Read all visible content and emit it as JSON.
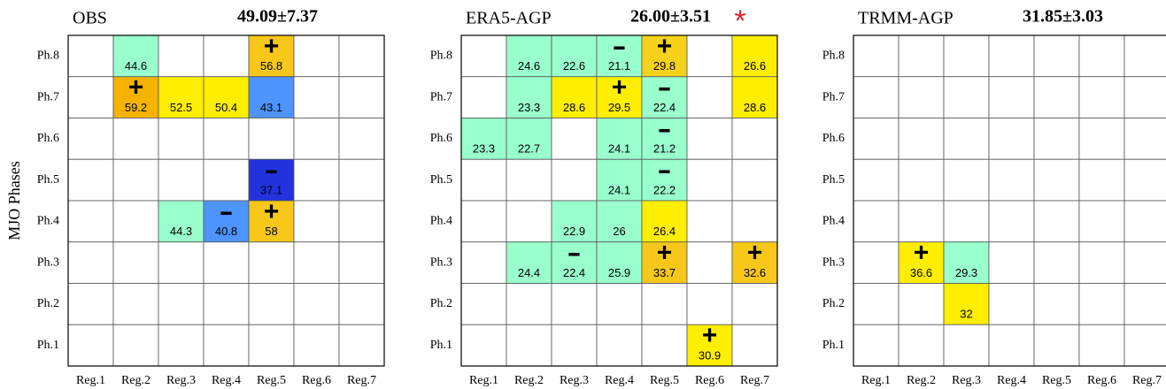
{
  "chart_data": [
    {
      "type": "grid",
      "title": "OBS",
      "stat": "49.09±7.37",
      "y_label": "MJO Phases",
      "rows": [
        "Ph.8",
        "Ph.7",
        "Ph.6",
        "Ph.5",
        "Ph.4",
        "Ph.3",
        "Ph.2",
        "Ph.1"
      ],
      "columns": [
        "Reg.1",
        "Reg.2",
        "Reg.3",
        "Reg.4",
        "Reg.5",
        "Reg.6",
        "Reg.7"
      ],
      "values": [
        [
          null,
          44.6,
          null,
          null,
          56.8,
          null,
          null
        ],
        [
          null,
          59.2,
          52.5,
          50.4,
          43.1,
          null,
          null
        ],
        [
          null,
          null,
          null,
          null,
          null,
          null,
          null
        ],
        [
          null,
          null,
          null,
          null,
          37.1,
          null,
          null
        ],
        [
          null,
          null,
          44.3,
          40.8,
          58,
          null,
          null
        ],
        [
          null,
          null,
          null,
          null,
          null,
          null,
          null
        ],
        [
          null,
          null,
          null,
          null,
          null,
          null,
          null
        ],
        [
          null,
          null,
          null,
          null,
          null,
          null,
          null
        ]
      ],
      "colors": [
        [
          null,
          "#99ffcc",
          null,
          null,
          "#f7c81a",
          null,
          null
        ],
        [
          null,
          "#f5b300",
          "#ffee00",
          "#ffee00",
          "#4d94ff",
          null,
          null
        ],
        [
          null,
          null,
          null,
          null,
          null,
          null,
          null
        ],
        [
          null,
          null,
          null,
          null,
          "#2233dd",
          null,
          null
        ],
        [
          null,
          null,
          "#99ffcc",
          "#4d94ff",
          "#f7c81a",
          null,
          null
        ],
        [
          null,
          null,
          null,
          null,
          null,
          null,
          null
        ],
        [
          null,
          null,
          null,
          null,
          null,
          null,
          null
        ],
        [
          null,
          null,
          null,
          null,
          null,
          null,
          null
        ]
      ],
      "signs": [
        [
          null,
          null,
          null,
          null,
          "+",
          null,
          null
        ],
        [
          null,
          "+",
          null,
          null,
          null,
          null,
          null
        ],
        [
          null,
          null,
          null,
          null,
          null,
          null,
          null
        ],
        [
          null,
          null,
          null,
          null,
          "-",
          null,
          null
        ],
        [
          null,
          null,
          null,
          "-",
          "+",
          null,
          null
        ],
        [
          null,
          null,
          null,
          null,
          null,
          null,
          null
        ],
        [
          null,
          null,
          null,
          null,
          null,
          null,
          null
        ],
        [
          null,
          null,
          null,
          null,
          null,
          null,
          null
        ]
      ]
    },
    {
      "type": "grid",
      "title": "ERA5-AGP",
      "stat": "26.00±3.51",
      "marker": "*",
      "rows": [
        "Ph.8",
        "Ph.7",
        "Ph.6",
        "Ph.5",
        "Ph.4",
        "Ph.3",
        "Ph.2",
        "Ph.1"
      ],
      "columns": [
        "Reg.1",
        "Reg.2",
        "Reg.3",
        "Reg.4",
        "Reg.5",
        "Reg.6",
        "Reg.7"
      ],
      "values": [
        [
          null,
          24.6,
          22.6,
          21.1,
          29.8,
          null,
          26.6
        ],
        [
          null,
          23.3,
          28.6,
          29.5,
          22.4,
          null,
          28.6
        ],
        [
          23.3,
          22.7,
          null,
          24.1,
          21.2,
          null,
          null
        ],
        [
          null,
          null,
          null,
          24.1,
          22.2,
          null,
          null
        ],
        [
          null,
          null,
          22.9,
          26,
          26.4,
          null,
          null
        ],
        [
          null,
          24.4,
          22.4,
          25.9,
          33.7,
          null,
          32.6
        ],
        [
          null,
          null,
          null,
          null,
          null,
          null,
          null
        ],
        [
          null,
          null,
          null,
          null,
          null,
          30.9,
          null
        ]
      ],
      "colors": [
        [
          null,
          "#99ffcc",
          "#99ffcc",
          "#99ffcc",
          "#f7d21a",
          null,
          "#ffee00"
        ],
        [
          null,
          "#99ffcc",
          "#ffee00",
          "#ffee00",
          "#99ffcc",
          null,
          "#ffee00"
        ],
        [
          "#99ffcc",
          "#99ffcc",
          null,
          "#99ffcc",
          "#99ffcc",
          null,
          null
        ],
        [
          null,
          null,
          null,
          "#99ffcc",
          "#99ffcc",
          null,
          null
        ],
        [
          null,
          null,
          "#99ffcc",
          "#99ffcc",
          "#ffee00",
          null,
          null
        ],
        [
          null,
          "#99ffcc",
          "#99ffcc",
          "#99ffcc",
          "#f7c81a",
          null,
          "#f7c81a"
        ],
        [
          null,
          null,
          null,
          null,
          null,
          null,
          null
        ],
        [
          null,
          null,
          null,
          null,
          null,
          "#ffee00",
          null
        ]
      ],
      "signs": [
        [
          null,
          null,
          null,
          "-",
          "+",
          null,
          null
        ],
        [
          null,
          null,
          null,
          "+",
          "-",
          null,
          null
        ],
        [
          null,
          null,
          null,
          null,
          "-",
          null,
          null
        ],
        [
          null,
          null,
          null,
          null,
          "-",
          null,
          null
        ],
        [
          null,
          null,
          null,
          null,
          null,
          null,
          null
        ],
        [
          null,
          null,
          "-",
          null,
          "+",
          null,
          "+"
        ],
        [
          null,
          null,
          null,
          null,
          null,
          null,
          null
        ],
        [
          null,
          null,
          null,
          null,
          null,
          "+",
          null
        ]
      ]
    },
    {
      "type": "grid",
      "title": "TRMM-AGP",
      "stat": "31.85±3.03",
      "rows": [
        "Ph.8",
        "Ph.7",
        "Ph.6",
        "Ph.5",
        "Ph.4",
        "Ph.3",
        "Ph.2",
        "Ph.1"
      ],
      "columns": [
        "Reg.1",
        "Reg.2",
        "Reg.3",
        "Reg.4",
        "Reg.5",
        "Reg.6",
        "Reg.7"
      ],
      "values": [
        [
          null,
          null,
          null,
          null,
          null,
          null,
          null
        ],
        [
          null,
          null,
          null,
          null,
          null,
          null,
          null
        ],
        [
          null,
          null,
          null,
          null,
          null,
          null,
          null
        ],
        [
          null,
          null,
          null,
          null,
          null,
          null,
          null
        ],
        [
          null,
          null,
          null,
          null,
          null,
          null,
          null
        ],
        [
          null,
          36.6,
          29.3,
          null,
          null,
          null,
          null
        ],
        [
          null,
          null,
          32,
          null,
          null,
          null,
          null
        ],
        [
          null,
          null,
          null,
          null,
          null,
          null,
          null
        ]
      ],
      "colors": [
        [
          null,
          null,
          null,
          null,
          null,
          null,
          null
        ],
        [
          null,
          null,
          null,
          null,
          null,
          null,
          null
        ],
        [
          null,
          null,
          null,
          null,
          null,
          null,
          null
        ],
        [
          null,
          null,
          null,
          null,
          null,
          null,
          null
        ],
        [
          null,
          null,
          null,
          null,
          null,
          null,
          null
        ],
        [
          null,
          "#ffee00",
          "#99ffcc",
          null,
          null,
          null,
          null
        ],
        [
          null,
          null,
          "#ffee00",
          null,
          null,
          null,
          null
        ],
        [
          null,
          null,
          null,
          null,
          null,
          null,
          null
        ]
      ],
      "signs": [
        [
          null,
          null,
          null,
          null,
          null,
          null,
          null
        ],
        [
          null,
          null,
          null,
          null,
          null,
          null,
          null
        ],
        [
          null,
          null,
          null,
          null,
          null,
          null,
          null
        ],
        [
          null,
          null,
          null,
          null,
          null,
          null,
          null
        ],
        [
          null,
          null,
          null,
          null,
          null,
          null,
          null
        ],
        [
          null,
          "+",
          null,
          null,
          null,
          null,
          null
        ],
        [
          null,
          null,
          null,
          null,
          null,
          null,
          null
        ],
        [
          null,
          null,
          null,
          null,
          null,
          null,
          null
        ]
      ]
    }
  ]
}
